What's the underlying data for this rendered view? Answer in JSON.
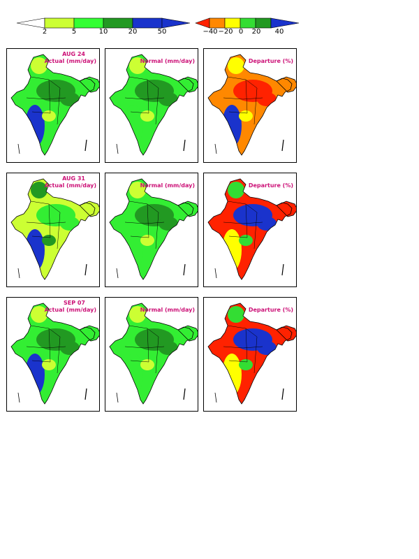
{
  "legends": {
    "actual": {
      "ticks": [
        "2",
        "5",
        "10",
        "20",
        "50"
      ],
      "colors": [
        "#ffffff",
        "#ccff33",
        "#33ff33",
        "#229922",
        "#1a33cc"
      ]
    },
    "departure": {
      "ticks": [
        "−40",
        "−20",
        "0",
        "20",
        "40"
      ],
      "colors": [
        "#ff2200",
        "#ff8800",
        "#ffff00",
        "#33dd33",
        "#229922",
        "#1a33cc"
      ]
    }
  },
  "rows": [
    {
      "date": "AUG 24",
      "actual_title": "Actual (mm/day)",
      "normal_title": "Normal (mm/day)",
      "departure_title": "Departure (%)",
      "actual_colors": [
        "#33ee33",
        "#229922",
        "#1a33cc",
        "#ccff33"
      ],
      "departure_colors": [
        "#ff8800",
        "#ff2200",
        "#1a33cc",
        "#ffff00"
      ]
    },
    {
      "date": "AUG 31",
      "actual_title": "Actual (mm/day)",
      "normal_title": "Normal (mm/day)",
      "departure_title": "Departure (%)",
      "actual_colors": [
        "#ccff33",
        "#33ee33",
        "#1a33cc",
        "#229922"
      ],
      "departure_colors": [
        "#ff2200",
        "#1a33cc",
        "#ffff00",
        "#33dd33"
      ]
    },
    {
      "date": "SEP 07",
      "actual_title": "Actual (mm/day)",
      "normal_title": "Normal (mm/day)",
      "departure_title": "Departure (%)",
      "actual_colors": [
        "#33ee33",
        "#229922",
        "#1a33cc",
        "#ccff33"
      ],
      "departure_colors": [
        "#ff2200",
        "#1a33cc",
        "#ffff00",
        "#33dd33"
      ]
    }
  ]
}
